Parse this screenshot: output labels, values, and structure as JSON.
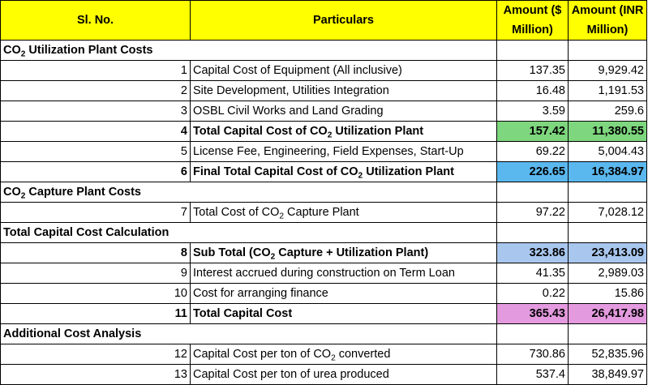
{
  "headers": {
    "sl_no": "Sl. No.",
    "particulars": "Particulars",
    "amount_usd": "Amount ($ Million)",
    "amount_inr": "Amount (INR Million)"
  },
  "colors": {
    "header": "#ffff00",
    "total_utilization": "#7ed67e",
    "final_total_utilization": "#5ab8ee",
    "sub_total": "#a9c7ee",
    "total_capital_cost": "#e39ade"
  },
  "sections": {
    "utilization": "CO₂ Utilization Plant Costs",
    "capture": "CO₂ Capture Plant Costs",
    "total_calc": "Total Capital Cost Calculation",
    "additional": "Additional Cost Analysis"
  },
  "rows": [
    {
      "sl": "1",
      "particular": "Capital Cost of Equipment (All inclusive)",
      "usd": "137.35",
      "inr": "9,929.42"
    },
    {
      "sl": "2",
      "particular": "Site Development, Utilities Integration",
      "usd": "16.48",
      "inr": "1,191.53"
    },
    {
      "sl": "3",
      "particular": "OSBL Civil Works and Land Grading",
      "usd": "3.59",
      "inr": "259.6"
    },
    {
      "sl": "4",
      "particular": "Total Capital Cost of CO₂ Utilization Plant",
      "usd": "157.42",
      "inr": "11,380.55"
    },
    {
      "sl": "5",
      "particular": "License Fee, Engineering, Field Expenses, Start-Up",
      "usd": "69.22",
      "inr": "5,004.43"
    },
    {
      "sl": "6",
      "particular": "Final Total Capital Cost of CO₂ Utilization Plant",
      "usd": "226.65",
      "inr": "16,384.97"
    },
    {
      "sl": "7",
      "particular": "Total Cost of CO₂ Capture Plant",
      "usd": "97.22",
      "inr": "7,028.12"
    },
    {
      "sl": "8",
      "particular": "Sub Total (CO₂ Capture + Utilization Plant)",
      "usd": "323.86",
      "inr": "23,413.09"
    },
    {
      "sl": "9",
      "particular": "Interest accrued during construction on Term Loan",
      "usd": "41.35",
      "inr": "2,989.03"
    },
    {
      "sl": "10",
      "particular": "Cost for arranging finance",
      "usd": "0.22",
      "inr": "15.86"
    },
    {
      "sl": "11",
      "particular": "Total Capital Cost",
      "usd": "365.43",
      "inr": "26,417.98"
    },
    {
      "sl": "12",
      "particular": "Capital Cost per ton of CO₂ converted",
      "usd": "730.86",
      "inr": "52,835.96"
    },
    {
      "sl": "13",
      "particular": "Capital Cost per ton of urea produced",
      "usd": "537.4",
      "inr": "38,849.97"
    }
  ]
}
